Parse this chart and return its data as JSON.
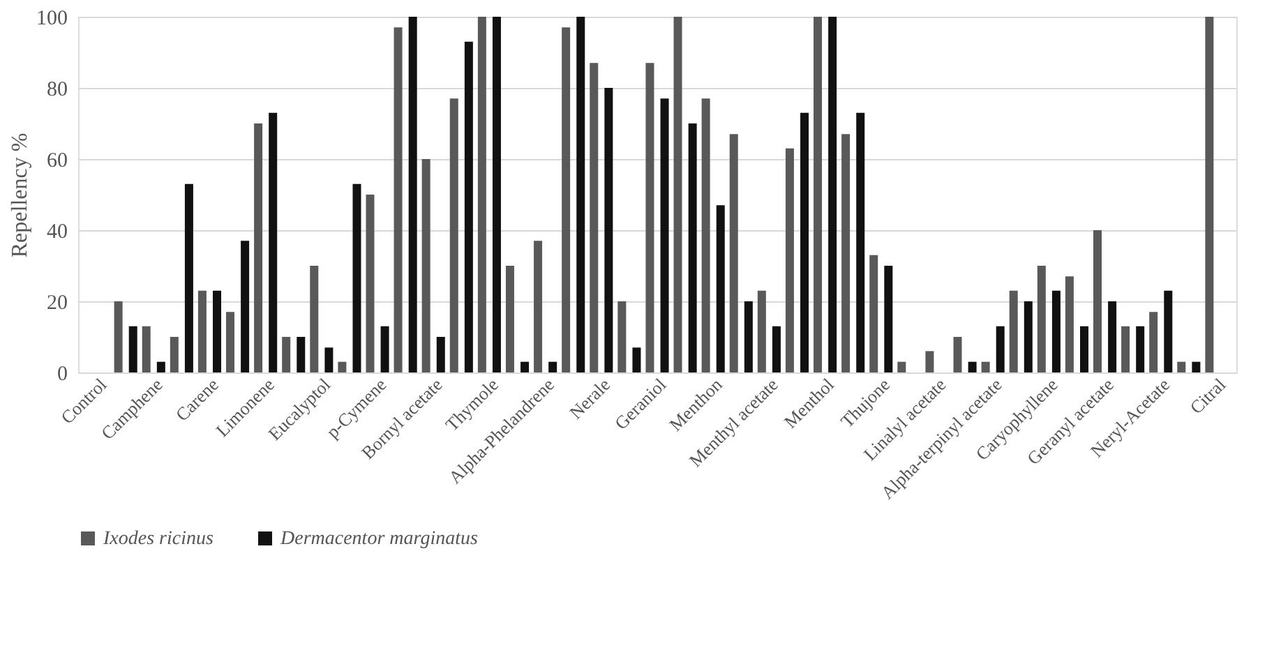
{
  "chart_data": {
    "type": "bar",
    "ylabel": "Repellency %",
    "categories": [
      "Control",
      null,
      "Camphene",
      null,
      "Carene",
      null,
      "Limonene",
      null,
      "Eucalyptol",
      null,
      "p-Cymene",
      null,
      "Bornyl acetate",
      null,
      "Thymole",
      null,
      "Alpha-Phelandrene",
      null,
      "Nerale",
      null,
      "Geraniol",
      null,
      "Menthon",
      null,
      "Menthyl acetate",
      null,
      "Menthol",
      null,
      "Thujone",
      null,
      "Linalyl acetate",
      null,
      "Alpha-terpinyl acetate",
      null,
      "Caryophyllene",
      null,
      "Geranyl acetate",
      null,
      "Neryl-Acetate",
      null,
      "Citral"
    ],
    "series": [
      {
        "name": "Ixodes ricinus",
        "color": "#595959",
        "values": [
          0,
          20,
          13,
          10,
          23,
          17,
          70,
          10,
          30,
          3,
          50,
          97,
          60,
          77,
          100,
          30,
          37,
          97,
          87,
          20,
          87,
          100,
          77,
          67,
          23,
          63,
          100,
          67,
          33,
          3,
          6,
          10,
          3,
          23,
          30,
          27,
          40,
          13,
          17,
          3,
          100
        ]
      },
      {
        "name": "Dermacentor marginatus",
        "color": "#111111",
        "values": [
          0,
          13,
          3,
          53,
          23,
          37,
          73,
          10,
          7,
          53,
          13,
          100,
          10,
          93,
          100,
          3,
          3,
          100,
          80,
          7,
          77,
          70,
          47,
          20,
          13,
          73,
          100,
          73,
          30,
          0,
          0,
          3,
          13,
          20,
          23,
          13,
          20,
          13,
          23,
          3,
          null
        ]
      }
    ],
    "ylim": [
      0,
      100
    ],
    "yticks": [
      0,
      20,
      40,
      60,
      80,
      100
    ],
    "grid": "y",
    "legend": "bottom"
  }
}
